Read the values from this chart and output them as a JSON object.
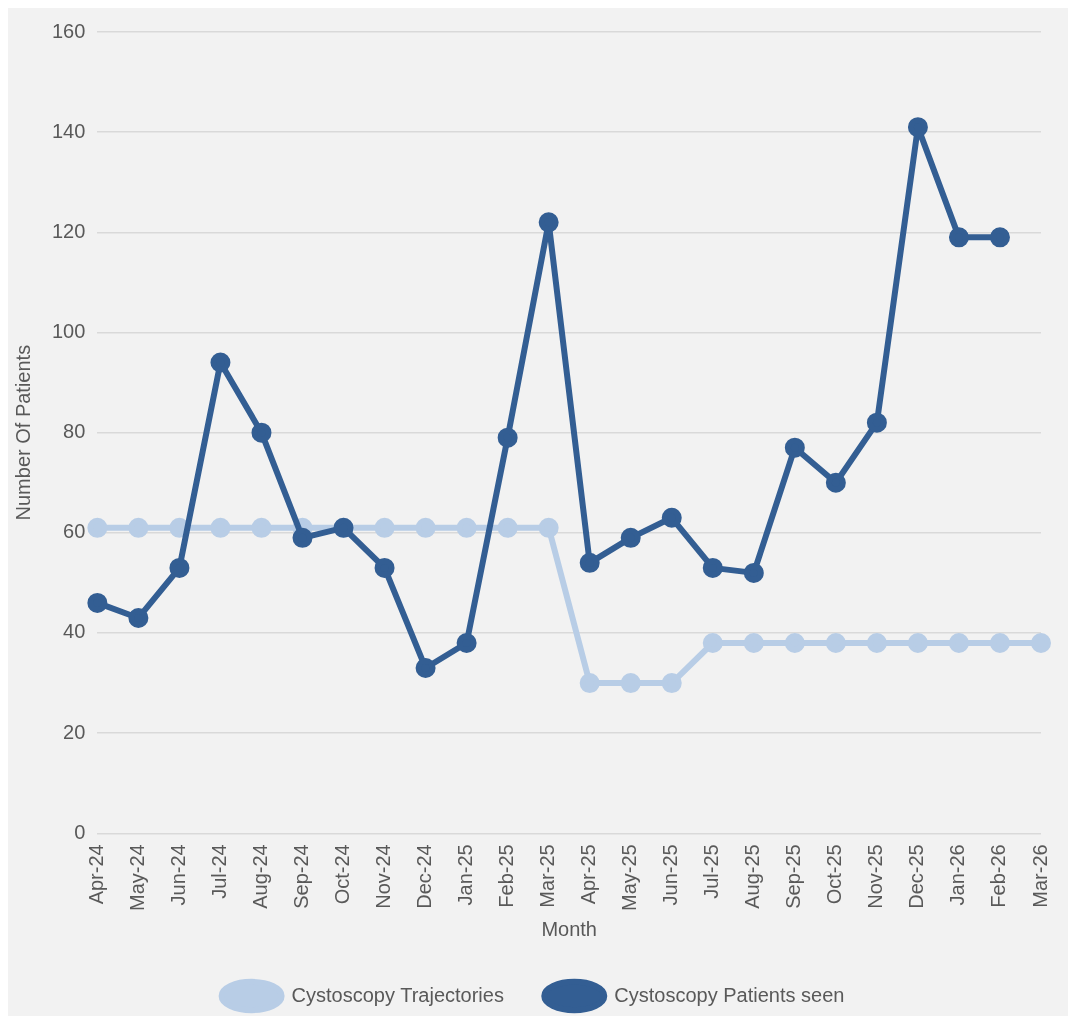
{
  "chart_data": {
    "type": "line",
    "xlabel": "Month",
    "ylabel": "Number Of Patients",
    "categories": [
      "Apr-24",
      "May-24",
      "Jun-24",
      "Jul-24",
      "Aug-24",
      "Sep-24",
      "Oct-24",
      "Nov-24",
      "Dec-24",
      "Jan-25",
      "Feb-25",
      "Mar-25",
      "Apr-25",
      "May-25",
      "Jun-25",
      "Jul-25",
      "Aug-25",
      "Sep-25",
      "Oct-25",
      "Nov-25",
      "Dec-25",
      "Jan-26",
      "Feb-26",
      "Mar-26"
    ],
    "series": [
      {
        "name": "Cystoscopy Trajectories",
        "color": "#b8cde6",
        "values": [
          61,
          61,
          61,
          61,
          61,
          61,
          61,
          61,
          61,
          61,
          61,
          61,
          30,
          30,
          30,
          38,
          38,
          38,
          38,
          38,
          38,
          38,
          38,
          38
        ]
      },
      {
        "name": "Cystoscopy Patients seen",
        "color": "#335e93",
        "values": [
          46,
          43,
          53,
          94,
          80,
          59,
          61,
          53,
          33,
          38,
          79,
          122,
          54,
          59,
          63,
          53,
          52,
          77,
          70,
          82,
          141,
          119,
          119,
          null
        ]
      }
    ],
    "ylim": [
      0,
      160
    ],
    "yticks": [
      0,
      20,
      40,
      60,
      80,
      100,
      120,
      140,
      160
    ],
    "grid": "y",
    "legend": "bottom",
    "marker": "circle",
    "line_style": "solid"
  }
}
